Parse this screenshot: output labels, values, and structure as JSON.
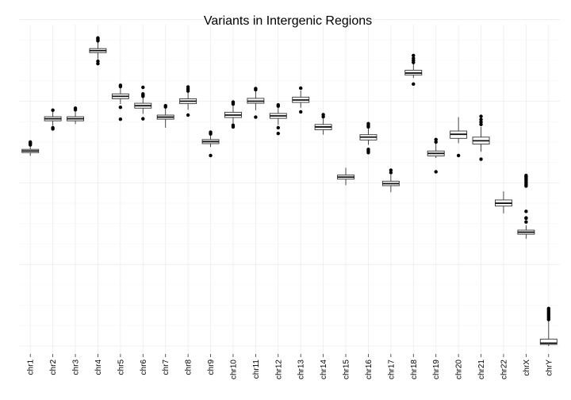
{
  "chart_data": {
    "type": "box",
    "title": "Variants in Intergenic Regions",
    "xlabel": "",
    "ylabel": "",
    "y_tick_labels_visible": false,
    "grid": true,
    "legend": "none",
    "ylim": [
      0,
      8
    ],
    "categories": [
      "chr1",
      "chr2",
      "chr3",
      "chr4",
      "chr5",
      "chr6",
      "chr7",
      "chr8",
      "chr9",
      "chr10",
      "chr11",
      "chr12",
      "chr13",
      "chr14",
      "chr15",
      "chr16",
      "chr17",
      "chr18",
      "chr19",
      "chr20",
      "chr21",
      "chr22",
      "chrX",
      "chrY"
    ],
    "boxes": [
      {
        "min": 4.66,
        "q1": 4.74,
        "median": 4.78,
        "q3": 4.82,
        "max": 4.9,
        "outliers": [
          4.93,
          4.96,
          4.98,
          5.0
        ]
      },
      {
        "min": 5.4,
        "q1": 5.52,
        "median": 5.57,
        "q3": 5.62,
        "max": 5.74,
        "outliers": [
          5.32,
          5.35,
          5.78
        ]
      },
      {
        "min": 5.44,
        "q1": 5.52,
        "median": 5.57,
        "q3": 5.62,
        "max": 5.76,
        "outliers": [
          5.79,
          5.83
        ]
      },
      {
        "min": 7.03,
        "q1": 7.19,
        "median": 7.24,
        "q3": 7.29,
        "max": 7.46,
        "outliers": [
          6.92,
          6.98,
          7.48,
          7.51,
          7.53,
          7.55
        ]
      },
      {
        "min": 5.93,
        "q1": 6.06,
        "median": 6.12,
        "q3": 6.18,
        "max": 6.33,
        "outliers": [
          5.56,
          5.85,
          6.36,
          6.39
        ]
      },
      {
        "min": 5.69,
        "q1": 5.83,
        "median": 5.89,
        "q3": 5.95,
        "max": 6.09,
        "outliers": [
          5.57,
          6.12,
          6.15,
          6.18,
          6.34
        ]
      },
      {
        "min": 5.35,
        "q1": 5.56,
        "median": 5.61,
        "q3": 5.66,
        "max": 5.83,
        "outliers": [
          5.86,
          5.89
        ]
      },
      {
        "min": 5.79,
        "q1": 5.94,
        "median": 6.0,
        "q3": 6.06,
        "max": 6.22,
        "outliers": [
          5.66,
          6.25,
          6.3,
          6.35
        ]
      },
      {
        "min": 4.88,
        "q1": 4.96,
        "median": 5.01,
        "q3": 5.06,
        "max": 5.17,
        "outliers": [
          4.67,
          5.2,
          5.24
        ]
      },
      {
        "min": 5.45,
        "q1": 5.6,
        "median": 5.66,
        "q3": 5.73,
        "max": 5.9,
        "outliers": [
          5.37,
          5.41,
          5.93,
          5.96,
          5.98
        ]
      },
      {
        "min": 5.78,
        "q1": 5.95,
        "median": 6.0,
        "q3": 6.07,
        "max": 6.25,
        "outliers": [
          5.61,
          6.28,
          6.31
        ]
      },
      {
        "min": 5.42,
        "q1": 5.58,
        "median": 5.64,
        "q3": 5.7,
        "max": 5.85,
        "outliers": [
          5.21,
          5.35,
          5.88,
          5.91
        ]
      },
      {
        "min": 5.84,
        "q1": 5.97,
        "median": 6.03,
        "q3": 6.1,
        "max": 6.26,
        "outliers": [
          5.74,
          6.32
        ]
      },
      {
        "min": 5.18,
        "q1": 5.3,
        "median": 5.37,
        "q3": 5.43,
        "max": 5.58,
        "outliers": [
          5.62,
          5.67
        ]
      },
      {
        "min": 3.94,
        "q1": 4.09,
        "median": 4.14,
        "q3": 4.19,
        "max": 4.37,
        "outliers": []
      },
      {
        "min": 4.93,
        "q1": 5.05,
        "median": 5.12,
        "q3": 5.18,
        "max": 5.34,
        "outliers": [
          4.74,
          4.78,
          4.82,
          5.37,
          5.41,
          5.45
        ]
      },
      {
        "min": 3.77,
        "q1": 3.93,
        "median": 3.98,
        "q3": 4.04,
        "max": 4.2,
        "outliers": [
          4.25,
          4.31
        ]
      },
      {
        "min": 6.57,
        "q1": 6.64,
        "median": 6.69,
        "q3": 6.76,
        "max": 6.93,
        "outliers": [
          6.42,
          6.95,
          7.0,
          7.05,
          7.12
        ]
      },
      {
        "min": 4.61,
        "q1": 4.66,
        "median": 4.72,
        "q3": 4.78,
        "max": 4.96,
        "outliers": [
          4.27,
          5.0,
          5.06
        ]
      },
      {
        "min": 4.97,
        "q1": 5.09,
        "median": 5.19,
        "q3": 5.27,
        "max": 5.61,
        "outliers": [
          4.67
        ]
      },
      {
        "min": 4.76,
        "q1": 4.95,
        "median": 5.03,
        "q3": 5.12,
        "max": 5.37,
        "outliers": [
          4.58,
          5.43,
          5.49,
          5.55,
          5.63
        ]
      },
      {
        "min": 3.25,
        "q1": 3.43,
        "median": 3.5,
        "q3": 3.58,
        "max": 3.79,
        "outliers": []
      },
      {
        "min": 2.63,
        "q1": 2.74,
        "median": 2.79,
        "q3": 2.84,
        "max": 2.96,
        "outliers": [
          3.04,
          3.14,
          3.13,
          3.3,
          3.92,
          3.95,
          3.99,
          4.02,
          4.06,
          4.09,
          4.12,
          4.15,
          4.18
        ]
      },
      {
        "min": 0.0,
        "q1": 0.04,
        "median": 0.07,
        "q3": 0.17,
        "max": 0.62,
        "outliers": [
          0.65,
          0.69,
          0.73,
          0.77,
          0.8,
          0.84,
          0.88,
          0.92
        ]
      }
    ]
  }
}
